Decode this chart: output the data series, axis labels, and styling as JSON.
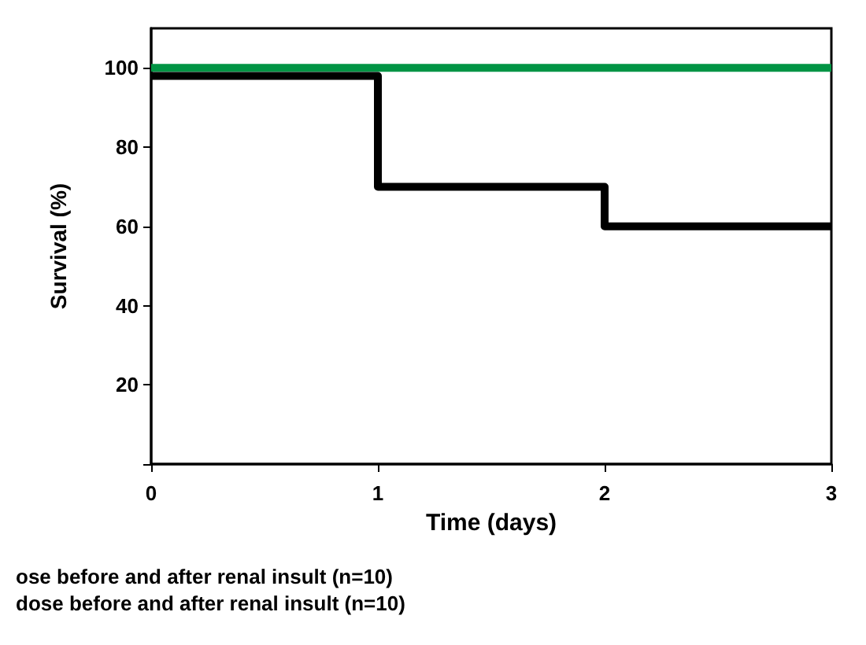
{
  "chart_data": {
    "type": "step",
    "xlabel": "Time (days)",
    "ylabel": "Survival (%)",
    "x": [
      0,
      1,
      2,
      3
    ],
    "series": [
      {
        "color": "#009444",
        "values": [
          100,
          100,
          100,
          100
        ]
      },
      {
        "color": "#000000",
        "values": [
          98,
          70,
          60,
          60
        ]
      }
    ],
    "xlim": [
      0,
      3
    ],
    "xticks": [
      0,
      1,
      2,
      3
    ],
    "ylim": [
      0,
      110
    ],
    "yticks": [
      {
        "value": 0,
        "label": null
      },
      20,
      40,
      60,
      80,
      100
    ],
    "grid": false,
    "marker": "none",
    "line_style": "solid",
    "annotations": [
      "ose before and after renal insult (n=10)",
      "dose before and after renal insult (n=10)"
    ]
  }
}
